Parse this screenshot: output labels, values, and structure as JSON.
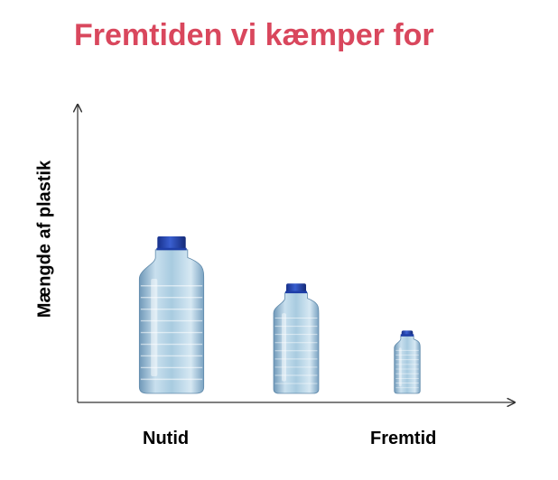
{
  "title": "Fremtiden vi kæmper for",
  "colors": {
    "title": "#d9475d",
    "axis": "#333333",
    "cap": "#1f3fa8",
    "bottle": "#9fc4dc"
  },
  "chart_data": {
    "type": "bar",
    "title": "Fremtiden vi kæmper for",
    "ylabel": "Mængde af plastik",
    "xlabel": "",
    "categories": [
      "Nutid",
      "",
      "Fremtid"
    ],
    "values": [
      1.0,
      0.7,
      0.4
    ],
    "mark": "bottle-icon",
    "grid": false,
    "legend": "none"
  }
}
